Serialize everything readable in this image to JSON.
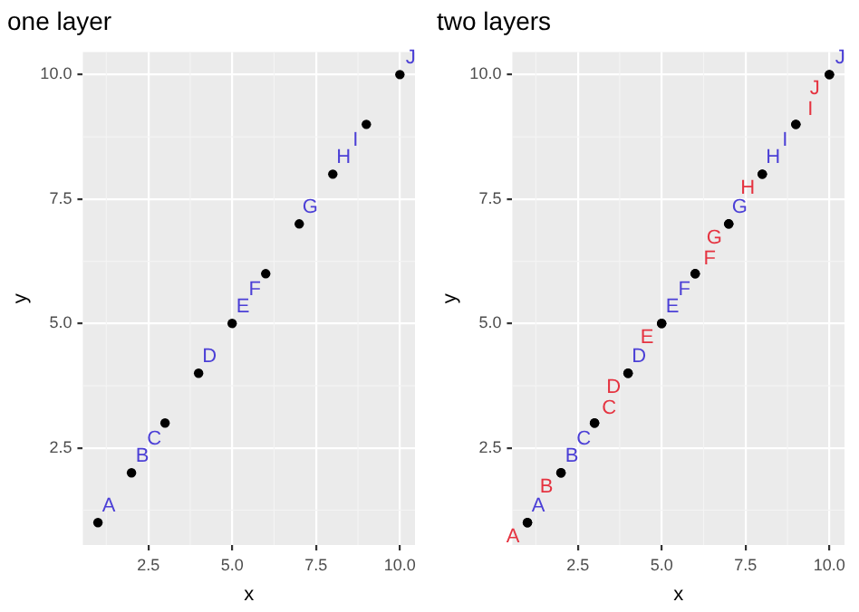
{
  "chart_data": [
    {
      "type": "scatter",
      "title": "one layer",
      "xlabel": "x",
      "ylabel": "y",
      "x": [
        1,
        2,
        3,
        4,
        5,
        6,
        7,
        8,
        9,
        10
      ],
      "xlim": [
        0.55,
        10.45
      ],
      "ylim": [
        0.55,
        10.45
      ],
      "xticks": [
        {
          "value": 2.5,
          "label": "2.5"
        },
        {
          "value": 5,
          "label": "5.0"
        },
        {
          "value": 7.5,
          "label": "7.5"
        },
        {
          "value": 10,
          "label": "10.0"
        }
      ],
      "yticks": [
        {
          "value": 2.5,
          "label": "2.5"
        },
        {
          "value": 5,
          "label": "5.0"
        },
        {
          "value": 7.5,
          "label": "7.5"
        },
        {
          "value": 10,
          "label": "10.0"
        }
      ],
      "grid": true,
      "legend": false,
      "series": [
        {
          "color": "#000000",
          "marker": "circle",
          "values": [
            1,
            2,
            3,
            4,
            5,
            6,
            7,
            8,
            9,
            10
          ],
          "value_labels": [
            "A",
            "B",
            "C",
            "D",
            "E",
            "F",
            "G",
            "H",
            "I",
            "J"
          ]
        }
      ]
    },
    {
      "type": "scatter",
      "title": "two layers",
      "xlabel": "x",
      "ylabel": "y",
      "x": [
        1,
        2,
        3,
        4,
        5,
        6,
        7,
        8,
        9,
        10
      ],
      "xlim": [
        0.55,
        10.45
      ],
      "ylim": [
        0.55,
        10.45
      ],
      "xticks": [
        {
          "value": 2.5,
          "label": "2.5"
        },
        {
          "value": 5,
          "label": "5.0"
        },
        {
          "value": 7.5,
          "label": "7.5"
        },
        {
          "value": 10,
          "label": "10.0"
        }
      ],
      "yticks": [
        {
          "value": 2.5,
          "label": "2.5"
        },
        {
          "value": 5,
          "label": "5.0"
        },
        {
          "value": 7.5,
          "label": "7.5"
        },
        {
          "value": 10,
          "label": "10.0"
        }
      ],
      "grid": true,
      "legend": false,
      "series": [
        {
          "color": "#000000",
          "marker": "circle",
          "values": [
            1,
            2,
            3,
            4,
            5,
            6,
            7,
            8,
            9,
            10
          ],
          "value_labels": [
            "A",
            "B",
            "C",
            "D",
            "E",
            "F",
            "G",
            "H",
            "I",
            "J"
          ]
        },
        {
          "color": "#000000",
          "marker": "circle",
          "values": [
            1,
            2,
            3,
            4,
            5,
            6,
            7,
            8,
            9,
            10
          ],
          "value_labels": [
            "A",
            "B",
            "C",
            "D",
            "E",
            "F",
            "G",
            "H",
            "I",
            "J"
          ]
        }
      ]
    }
  ]
}
